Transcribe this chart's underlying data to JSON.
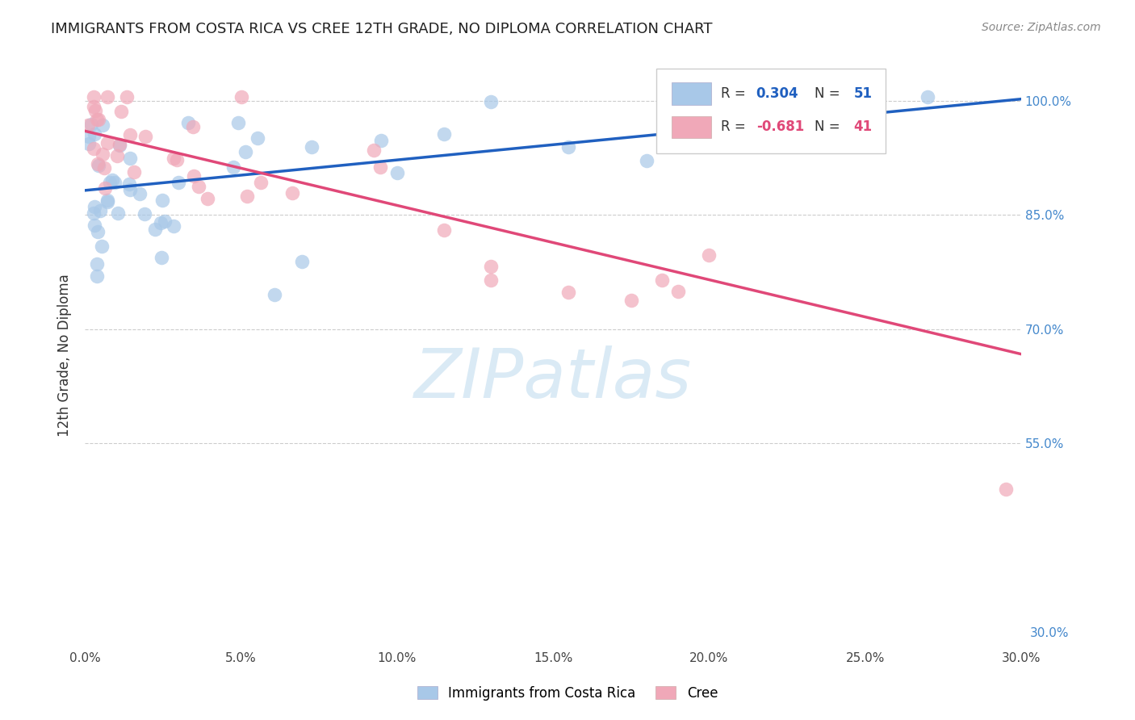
{
  "title": "IMMIGRANTS FROM COSTA RICA VS CREE 12TH GRADE, NO DIPLOMA CORRELATION CHART",
  "source": "Source: ZipAtlas.com",
  "ylabel": "12th Grade, No Diploma",
  "legend_label_blue": "Immigrants from Costa Rica",
  "legend_label_pink": "Cree",
  "R_blue": 0.304,
  "N_blue": 51,
  "R_pink": -0.681,
  "N_pink": 41,
  "x_min": 0.0,
  "x_max": 0.3,
  "y_min": 0.28,
  "y_max": 1.05,
  "y_ticks": [
    1.0,
    0.85,
    0.7,
    0.55
  ],
  "y_tick_labels": [
    "100.0%",
    "85.0%",
    "70.0%",
    "55.0%"
  ],
  "x_ticks": [
    0.0,
    0.05,
    0.1,
    0.15,
    0.2,
    0.25,
    0.3
  ],
  "x_tick_labels": [
    "0.0%",
    "5.0%",
    "10.0%",
    "15.0%",
    "20.0%",
    "25.0%",
    "30.0%"
  ],
  "blue_color": "#a8c8e8",
  "pink_color": "#f0a8b8",
  "blue_line_color": "#2060c0",
  "pink_line_color": "#e04878",
  "blue_line": {
    "x0": 0.0,
    "y0": 0.882,
    "x1": 0.3,
    "y1": 1.002
  },
  "pink_line": {
    "x0": 0.0,
    "y0": 0.96,
    "x1": 0.3,
    "y1": 0.667
  },
  "watermark": "ZIPatlas",
  "watermark_color": "#daeaf5",
  "background_color": "#ffffff"
}
